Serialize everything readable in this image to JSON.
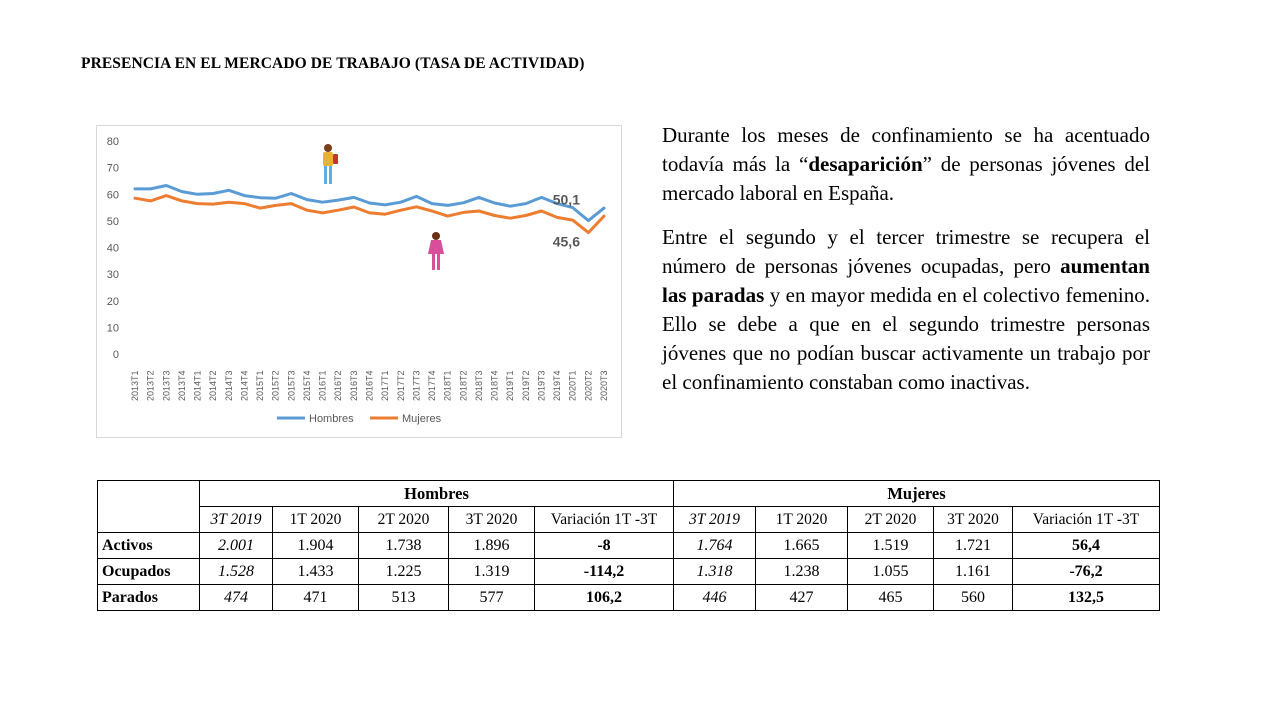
{
  "slide": {
    "title": "PRESENCIA EN EL MERCADO DE TRABAJO (TASA DE ACTIVIDAD)"
  },
  "chart_data": {
    "type": "line",
    "title": "",
    "xlabel": "",
    "ylabel": "",
    "ylim": [
      0,
      80
    ],
    "yticks": [
      0,
      10,
      20,
      30,
      40,
      50,
      60,
      70,
      80
    ],
    "grid": false,
    "legend_position": "bottom",
    "categories": [
      "2013T1",
      "2013T2",
      "2013T3",
      "2013T4",
      "2014T1",
      "2014T2",
      "2014T3",
      "2014T4",
      "2015T1",
      "2015T2",
      "2015T3",
      "2015T4",
      "2016T1",
      "2016T2",
      "2016T3",
      "2016T4",
      "2017T1",
      "2017T2",
      "2017T3",
      "2017T4",
      "2018T1",
      "2018T2",
      "2018T3",
      "2018T4",
      "2019T1",
      "2019T2",
      "2019T3",
      "2019T4",
      "2020T1",
      "2020T2",
      "2020T3"
    ],
    "series": [
      {
        "name": "Hombres",
        "color": "#5b9bd5",
        "values": [
          62,
          62,
          63.3,
          61,
          60,
          60.3,
          61.5,
          59.5,
          58.7,
          58.5,
          60.3,
          58,
          57,
          57.8,
          58.8,
          56.7,
          56,
          57,
          59.2,
          56.5,
          55.8,
          56.8,
          58.8,
          56.7,
          55.5,
          56.5,
          58.8,
          56.5,
          55,
          50.1,
          54.8
        ]
      },
      {
        "name": "Mujeres",
        "color": "#ed7d31",
        "values": [
          58.5,
          57.5,
          59.5,
          57.5,
          56.5,
          56.3,
          57,
          56.5,
          54.8,
          55.8,
          56.5,
          54,
          53,
          54,
          55.2,
          53,
          52.5,
          54,
          55.3,
          53.7,
          51.8,
          53.2,
          53.7,
          52,
          51,
          52,
          53.7,
          51.3,
          50.3,
          45.6,
          51.8
        ]
      }
    ],
    "annotations": [
      {
        "text": "50,1",
        "series": "Hombres",
        "category": "2020T2"
      },
      {
        "text": "45,6",
        "series": "Mujeres",
        "category": "2020T2"
      }
    ]
  },
  "text": {
    "p1_a": "Durante los meses de confinamiento se ha acentuado todavía más la “",
    "p1_b": "desaparición",
    "p1_c": "” de personas jóvenes del mercado laboral en España.",
    "p2_a": "Entre el segundo y el tercer trimestre se recupera el número de personas jóvenes ocupadas, pero ",
    "p2_b": "aumentan las paradas",
    "p2_c": " y en mayor medida en el colectivo femenino. Ello se debe a que en el segundo trimestre personas jóvenes que no podían buscar activamente un trabajo por el confinamiento constaban como inactivas."
  },
  "table": {
    "groups": [
      "Hombres",
      "Mujeres"
    ],
    "columns": [
      "3T 2019",
      "1T 2020",
      "2T 2020",
      "3T 2020",
      "Variación 1T -3T",
      "3T 2019",
      "1T 2020",
      "2T 2020",
      "3T 2020",
      "Variación 1T -3T"
    ],
    "rows": [
      {
        "label": "Activos",
        "cells": [
          "2.001",
          "1.904",
          "1.738",
          "1.896",
          "-8",
          "1.764",
          "1.665",
          "1.519",
          "1.721",
          "56,4"
        ]
      },
      {
        "label": "Ocupados",
        "cells": [
          "1.528",
          "1.433",
          "1.225",
          "1.319",
          "-114,2",
          "1.318",
          "1.238",
          "1.055",
          "1.161",
          "-76,2"
        ]
      },
      {
        "label": "Parados",
        "cells": [
          "474",
          "471",
          "513",
          "577",
          "106,2",
          "446",
          "427",
          "465",
          "560",
          "132,5"
        ]
      }
    ]
  }
}
